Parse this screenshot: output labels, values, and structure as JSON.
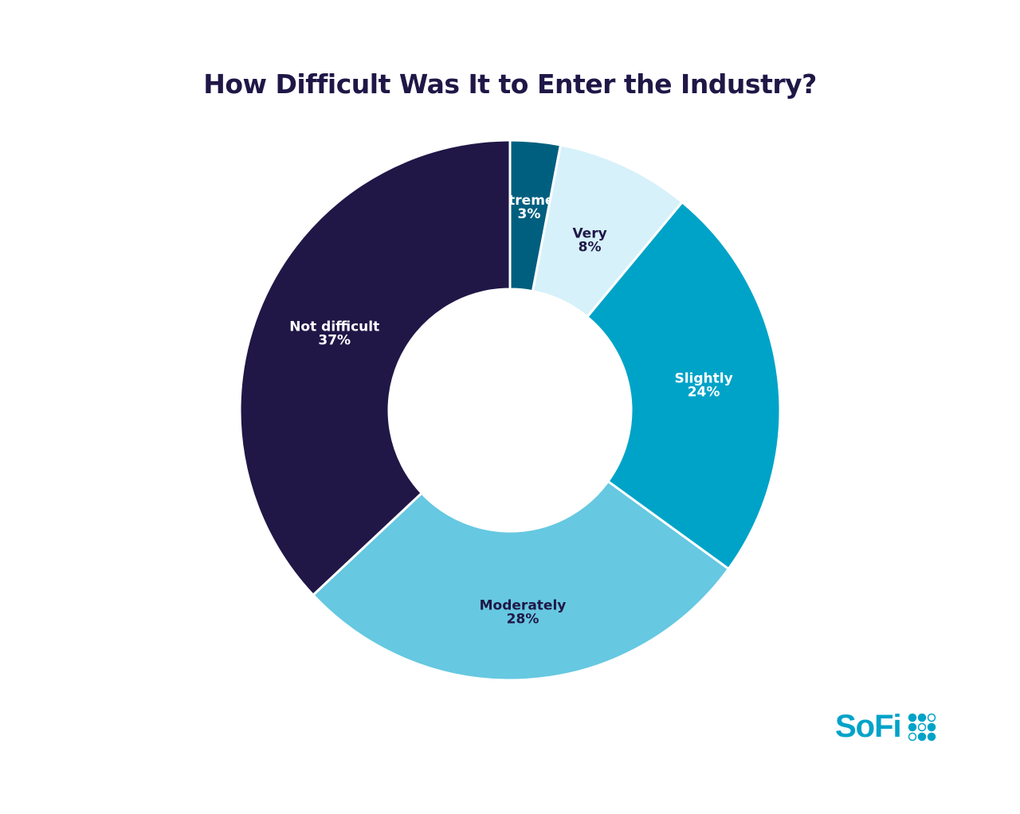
{
  "chart_data": {
    "type": "pie",
    "donut": true,
    "title": "How Difficult Was It to Enter the Industry?",
    "start": "top",
    "direction": "clockwise",
    "categories": [
      "Extremely",
      "Very",
      "Slightly",
      "Moderately",
      "Not difficult"
    ],
    "values": [
      3,
      8,
      24,
      28,
      37
    ],
    "value_labels": [
      "3%",
      "8%",
      "24%",
      "28%",
      "37%"
    ],
    "colors": [
      "#005f7f",
      "#d6f1fa",
      "#00a3c8",
      "#66c8e1",
      "#201747"
    ],
    "label_colors": [
      "#ffffff",
      "#201747",
      "#ffffff",
      "#201747",
      "#ffffff"
    ]
  },
  "brand": {
    "logo_text": "SoFi",
    "color": "#00a3c8"
  }
}
